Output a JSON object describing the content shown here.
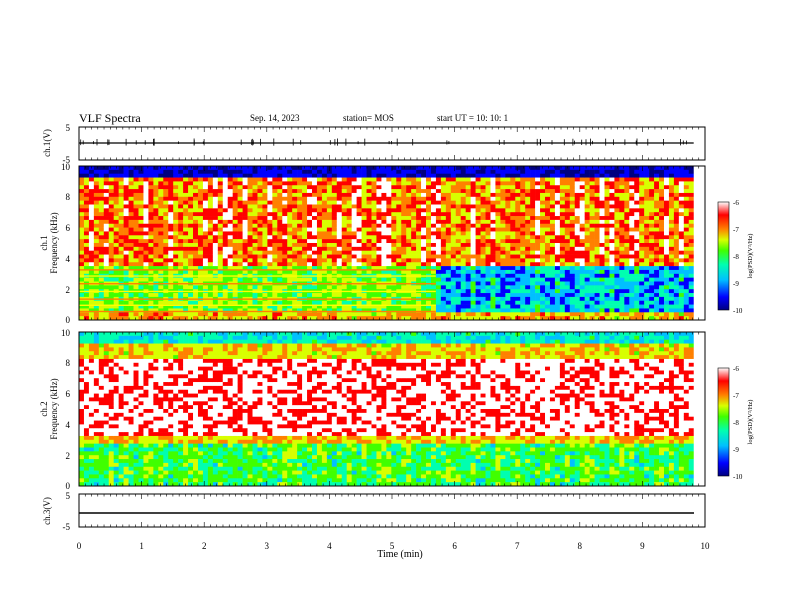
{
  "header": {
    "title": "VLF Spectra",
    "date": "Sep. 14, 2023",
    "station": "station= MOS",
    "start": "start  UT =   10: 10: 1"
  },
  "colors": {
    "colormap": [
      "#000080",
      "#0000ff",
      "#00c0ff",
      "#00ffb0",
      "#40ff00",
      "#d8ff00",
      "#ff8000",
      "#ff0000",
      "#ffffff"
    ]
  },
  "chart_data": [
    {
      "type": "line",
      "panel": "ch1_voltage",
      "ylabel": "ch.1(V)",
      "ytick_labels": [
        "5",
        "-5"
      ],
      "ylim": [
        -5,
        5
      ],
      "xlim": [
        0,
        10
      ],
      "x": [
        0,
        9.82
      ],
      "y": [
        0,
        0
      ]
    },
    {
      "type": "heatmap",
      "panel": "ch1_spectrogram",
      "ylabel": "ch.1\nFrequency (kHz)",
      "ytick_labels": [
        "0",
        "2",
        "4",
        "6",
        "8",
        "10"
      ],
      "ylim": [
        0,
        10
      ],
      "xlim": [
        0,
        10
      ],
      "data_end_min": 9.82,
      "transition_min": 5.7,
      "colorbar": {
        "label": "log(PSD)(V²/Hz)",
        "ticks": [
          "-6",
          "-7",
          "-8",
          "-9",
          "-10"
        ],
        "range": [
          -10,
          -6
        ]
      }
    },
    {
      "type": "heatmap",
      "panel": "ch2_spectrogram",
      "ylabel": "ch.2\nFrequency (kHz)",
      "ytick_labels": [
        "0",
        "2",
        "4",
        "6",
        "8",
        "10"
      ],
      "ylim": [
        0,
        10
      ],
      "xlim": [
        0,
        10
      ],
      "data_end_min": 9.82,
      "colorbar": {
        "label": "log(PSD)(V²/Hz)",
        "ticks": [
          "-6",
          "-7",
          "-8",
          "-9",
          "-10"
        ],
        "range": [
          -10,
          -6
        ]
      }
    },
    {
      "type": "line",
      "panel": "ch3_voltage",
      "ylabel": "ch.3(V)",
      "ytick_labels": [
        "5",
        "-5"
      ],
      "ylim": [
        -5,
        5
      ],
      "xlim": [
        0,
        10
      ],
      "x": [
        0,
        9.82
      ],
      "y": [
        -2,
        -2
      ],
      "xlabel": "Time  (min)",
      "xtick_labels": [
        "0",
        "1",
        "2",
        "3",
        "4",
        "5",
        "6",
        "7",
        "8",
        "9",
        "10"
      ]
    }
  ]
}
